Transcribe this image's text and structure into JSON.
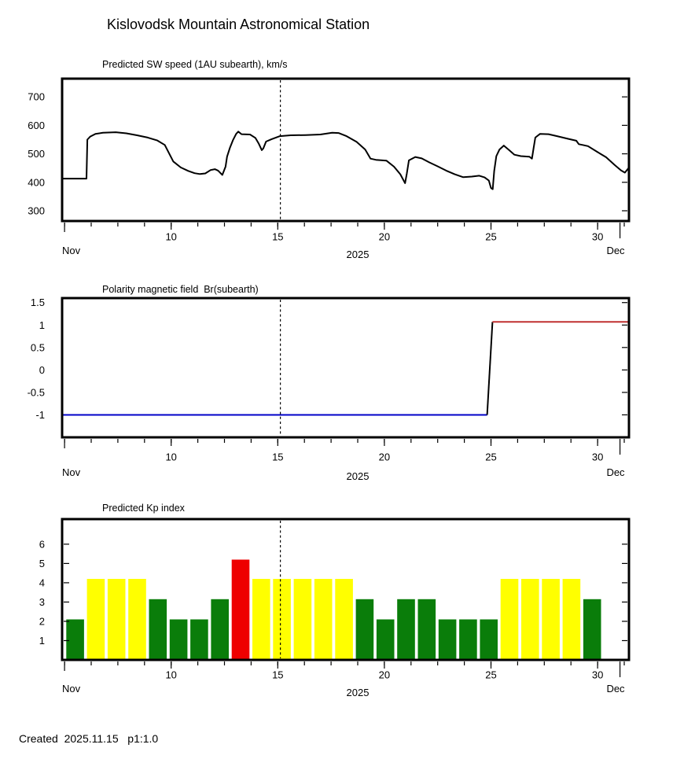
{
  "page": {
    "title": "Kislovodsk Mountain Astronomical Station",
    "footer": "Created  2025.11.15   p1:1.0",
    "background": "#ffffff"
  },
  "axis": {
    "x_start_label": "Nov",
    "x_end_label": "Dec",
    "year_label": "2025",
    "x_major_ticks": [
      10,
      15,
      20,
      25,
      30
    ],
    "x_major_labels": [
      "10",
      "15",
      "20",
      "25",
      "30"
    ],
    "x_minor_start": 5,
    "x_minor_step": 1.25,
    "x_minor_end": 31.25,
    "nov_tick_day": 5,
    "dec_tick_day": 31.05,
    "x_domain": [
      4.9,
      31.5
    ],
    "dashed_day": 15.12
  },
  "colors": {
    "frame": "#000000",
    "line": "#000000",
    "polarity_negative": "#0000c8",
    "polarity_positive": "#c03030",
    "kp_green": "#0a7d0a",
    "kp_yellow": "#ffff00",
    "kp_red": "#ee0000"
  },
  "chart_data": [
    {
      "type": "line",
      "title": "Predicted SW speed (1AU subearth), km/s",
      "ylabel": "km/s",
      "y_domain": [
        264,
        764
      ],
      "ytick_values": [
        700,
        600,
        500,
        400,
        300
      ],
      "ytick_labels": [
        "700",
        "600",
        "500",
        "400",
        "300"
      ],
      "series": [
        {
          "name": "predicted-sw-speed",
          "color_key": "line",
          "points": [
            [
              4.9,
              413
            ],
            [
              6.03,
              413
            ],
            [
              6.07,
              550
            ],
            [
              6.2,
              560
            ],
            [
              6.45,
              570
            ],
            [
              6.8,
              574
            ],
            [
              7.4,
              576
            ],
            [
              7.9,
              572
            ],
            [
              8.4,
              565
            ],
            [
              8.9,
              557
            ],
            [
              9.35,
              547
            ],
            [
              9.7,
              531
            ],
            [
              10.1,
              473
            ],
            [
              10.45,
              452
            ],
            [
              10.8,
              440
            ],
            [
              11.1,
              432
            ],
            [
              11.35,
              429
            ],
            [
              11.6,
              431
            ],
            [
              11.85,
              443
            ],
            [
              12.05,
              446
            ],
            [
              12.2,
              441
            ],
            [
              12.4,
              426
            ],
            [
              12.55,
              455
            ],
            [
              12.62,
              490
            ],
            [
              12.75,
              520
            ],
            [
              12.9,
              548
            ],
            [
              13.05,
              570
            ],
            [
              13.15,
              578
            ],
            [
              13.3,
              569
            ],
            [
              13.7,
              568
            ],
            [
              13.95,
              556
            ],
            [
              14.1,
              537
            ],
            [
              14.25,
              513
            ],
            [
              14.32,
              519
            ],
            [
              14.45,
              543
            ],
            [
              14.7,
              551
            ],
            [
              15.1,
              562
            ],
            [
              15.6,
              565
            ],
            [
              16.3,
              566
            ],
            [
              17.0,
              568
            ],
            [
              17.55,
              574
            ],
            [
              17.85,
              573
            ],
            [
              18.2,
              563
            ],
            [
              18.7,
              542
            ],
            [
              19.1,
              515
            ],
            [
              19.35,
              483
            ],
            [
              19.6,
              479
            ],
            [
              20.1,
              476
            ],
            [
              20.45,
              455
            ],
            [
              20.75,
              428
            ],
            [
              20.97,
              397
            ],
            [
              21.05,
              430
            ],
            [
              21.15,
              477
            ],
            [
              21.45,
              489
            ],
            [
              21.75,
              484
            ],
            [
              22.1,
              470
            ],
            [
              22.5,
              456
            ],
            [
              22.9,
              441
            ],
            [
              23.3,
              428
            ],
            [
              23.7,
              418
            ],
            [
              24.1,
              420
            ],
            [
              24.45,
              423
            ],
            [
              24.7,
              417
            ],
            [
              24.9,
              406
            ],
            [
              25.0,
              380
            ],
            [
              25.08,
              376
            ],
            [
              25.15,
              440
            ],
            [
              25.25,
              492
            ],
            [
              25.4,
              515
            ],
            [
              25.6,
              529
            ],
            [
              25.85,
              513
            ],
            [
              26.1,
              497
            ],
            [
              26.4,
              492
            ],
            [
              26.8,
              490
            ],
            [
              26.92,
              483
            ],
            [
              27.0,
              520
            ],
            [
              27.08,
              557
            ],
            [
              27.3,
              570
            ],
            [
              27.7,
              569
            ],
            [
              28.1,
              562
            ],
            [
              28.6,
              553
            ],
            [
              29.0,
              546
            ],
            [
              29.12,
              534
            ],
            [
              29.3,
              531
            ],
            [
              29.55,
              527
            ],
            [
              30.0,
              506
            ],
            [
              30.4,
              488
            ],
            [
              30.8,
              461
            ],
            [
              31.1,
              442
            ],
            [
              31.28,
              434
            ],
            [
              31.45,
              450
            ]
          ]
        }
      ]
    },
    {
      "type": "step-line",
      "title": "Polarity magnetic field  Br(subearth)",
      "y_domain": [
        -1.5,
        1.6
      ],
      "ytick_values": [
        1.5,
        1,
        0.5,
        0,
        -0.5,
        -1
      ],
      "ytick_labels": [
        "1.5",
        "1",
        "0.5",
        "0",
        "-0.5",
        "-1"
      ],
      "segments": [
        {
          "name": "polarity-negative-line",
          "color_key": "polarity_negative",
          "points": [
            [
              4.9,
              -1.0
            ],
            [
              24.82,
              -1.0
            ]
          ]
        },
        {
          "name": "polarity-transition-line",
          "color_key": "line",
          "points": [
            [
              24.82,
              -1.0
            ],
            [
              25.07,
              1.07
            ]
          ]
        },
        {
          "name": "polarity-positive-line",
          "color_key": "polarity_positive",
          "points": [
            [
              25.07,
              1.07
            ],
            [
              31.5,
              1.07
            ]
          ]
        }
      ]
    },
    {
      "type": "bar",
      "title": "Predicted Kp index",
      "y_domain": [
        0,
        7.3
      ],
      "ytick_values": [
        6,
        5,
        4,
        3,
        2,
        1
      ],
      "ytick_labels": [
        "6",
        "5",
        "4",
        "3",
        "2",
        "1"
      ],
      "bars": [
        {
          "date": "Nov 5",
          "kp": 2.1,
          "color_key": "kp_green"
        },
        {
          "date": "Nov 6",
          "kp": 4.2,
          "color_key": "kp_yellow"
        },
        {
          "date": "Nov 7",
          "kp": 4.2,
          "color_key": "kp_yellow"
        },
        {
          "date": "Nov 8",
          "kp": 4.2,
          "color_key": "kp_yellow"
        },
        {
          "date": "Nov 9",
          "kp": 3.15,
          "color_key": "kp_green"
        },
        {
          "date": "Nov 10",
          "kp": 2.1,
          "color_key": "kp_green"
        },
        {
          "date": "Nov 11",
          "kp": 2.1,
          "color_key": "kp_green"
        },
        {
          "date": "Nov 12",
          "kp": 3.15,
          "color_key": "kp_green"
        },
        {
          "date": "Nov 13",
          "kp": 5.2,
          "color_key": "kp_red"
        },
        {
          "date": "Nov 14",
          "kp": 4.2,
          "color_key": "kp_yellow"
        },
        {
          "date": "Nov 15",
          "kp": 4.2,
          "color_key": "kp_yellow"
        },
        {
          "date": "Nov 16",
          "kp": 4.2,
          "color_key": "kp_yellow"
        },
        {
          "date": "Nov 17",
          "kp": 4.2,
          "color_key": "kp_yellow"
        },
        {
          "date": "Nov 18",
          "kp": 4.2,
          "color_key": "kp_yellow"
        },
        {
          "date": "Nov 19",
          "kp": 3.15,
          "color_key": "kp_green"
        },
        {
          "date": "Nov 20",
          "kp": 2.1,
          "color_key": "kp_green"
        },
        {
          "date": "Nov 21",
          "kp": 3.15,
          "color_key": "kp_green"
        },
        {
          "date": "Nov 22",
          "kp": 3.15,
          "color_key": "kp_green"
        },
        {
          "date": "Nov 23",
          "kp": 2.1,
          "color_key": "kp_green"
        },
        {
          "date": "Nov 24",
          "kp": 2.1,
          "color_key": "kp_green"
        },
        {
          "date": "Nov 25",
          "kp": 2.1,
          "color_key": "kp_green"
        },
        {
          "date": "Nov 26",
          "kp": 4.2,
          "color_key": "kp_yellow"
        },
        {
          "date": "Nov 27",
          "kp": 4.2,
          "color_key": "kp_yellow"
        },
        {
          "date": "Nov 28",
          "kp": 4.2,
          "color_key": "kp_yellow"
        },
        {
          "date": "Nov 29",
          "kp": 4.2,
          "color_key": "kp_yellow"
        },
        {
          "date": "Nov 30",
          "kp": 3.15,
          "color_key": "kp_green"
        }
      ]
    }
  ]
}
